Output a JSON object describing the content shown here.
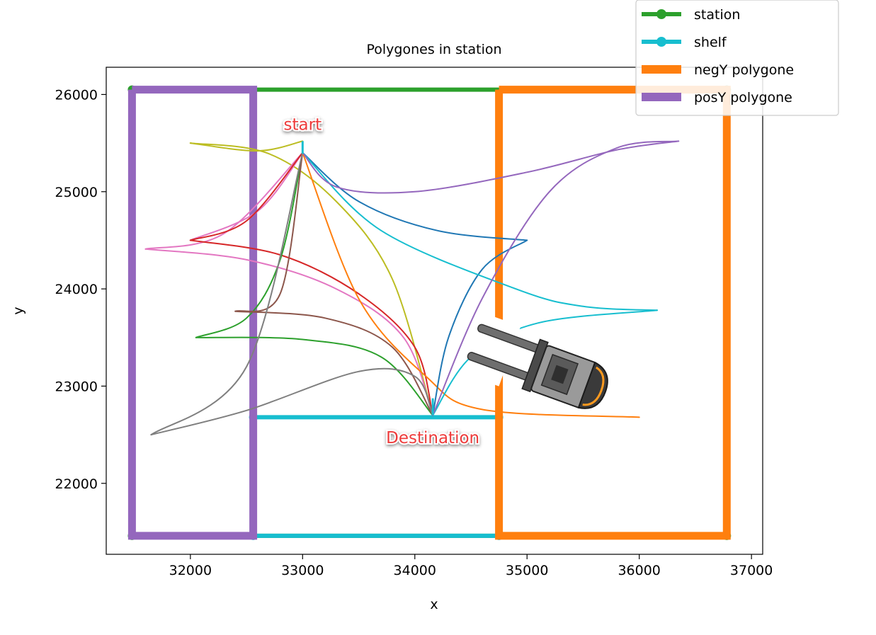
{
  "chart_data": {
    "type": "line",
    "title": "Polygones in station",
    "xlabel": "x",
    "ylabel": "y",
    "xlim": [
      31250,
      37100
    ],
    "ylim": [
      21270,
      26280
    ],
    "xticks": [
      32000,
      33000,
      34000,
      35000,
      36000,
      37000
    ],
    "yticks": [
      22000,
      23000,
      24000,
      25000,
      26000
    ],
    "grid": false,
    "legend_position": "top-right",
    "legend": [
      {
        "label": "station",
        "color": "#2ca02c",
        "style": "line-marker"
      },
      {
        "label": "shelf",
        "color": "#17becf",
        "style": "line-marker"
      },
      {
        "label": "negY polygone",
        "color": "#ff7f0e",
        "style": "thick"
      },
      {
        "label": "posY polygone",
        "color": "#9467bd",
        "style": "thick"
      }
    ],
    "polygons": [
      {
        "name": "station",
        "color": "#2ca02c",
        "width": 6,
        "markers": true,
        "points": [
          [
            31480,
            26050
          ],
          [
            36780,
            26050
          ],
          [
            36780,
            21460
          ],
          [
            31480,
            21460
          ],
          [
            31480,
            26050
          ]
        ]
      },
      {
        "name": "shelf",
        "color": "#17becf",
        "width": 6,
        "markers": true,
        "points": [
          [
            32560,
            22680
          ],
          [
            34750,
            22680
          ],
          [
            34750,
            21460
          ],
          [
            32560,
            21460
          ],
          [
            32560,
            22680
          ]
        ]
      },
      {
        "name": "negY polygone",
        "color": "#ff7f0e",
        "width": 11,
        "markers": false,
        "points": [
          [
            34750,
            26050
          ],
          [
            36780,
            26050
          ],
          [
            36780,
            21460
          ],
          [
            34750,
            21460
          ],
          [
            34750,
            26050
          ]
        ]
      },
      {
        "name": "posY polygone",
        "color": "#9467bd",
        "width": 11,
        "markers": false,
        "points": [
          [
            31480,
            26050
          ],
          [
            32560,
            26050
          ],
          [
            32560,
            21460
          ],
          [
            31480,
            21460
          ],
          [
            31480,
            26050
          ]
        ]
      }
    ],
    "paths": [
      {
        "color": "#bcbd22",
        "points": [
          [
            32000,
            25500
          ],
          [
            32600,
            25420
          ],
          [
            33000,
            25520
          ]
        ]
      },
      {
        "color": "#bcbd22",
        "points": [
          [
            32000,
            25500
          ],
          [
            32700,
            25390
          ],
          [
            33300,
            24900
          ],
          [
            33800,
            24100
          ],
          [
            34160,
            22700
          ]
        ]
      },
      {
        "color": "#e377c2",
        "points": [
          [
            32000,
            24500
          ],
          [
            32600,
            24800
          ],
          [
            33000,
            25400
          ]
        ]
      },
      {
        "color": "#e377c2",
        "points": [
          [
            31600,
            24410
          ],
          [
            32300,
            24570
          ],
          [
            33000,
            25400
          ]
        ]
      },
      {
        "color": "#e377c2",
        "points": [
          [
            31600,
            24410
          ],
          [
            32500,
            24300
          ],
          [
            33300,
            24000
          ],
          [
            33900,
            23500
          ],
          [
            34160,
            22700
          ]
        ]
      },
      {
        "color": "#d62728",
        "points": [
          [
            32000,
            24500
          ],
          [
            32500,
            24700
          ],
          [
            33000,
            25400
          ]
        ]
      },
      {
        "color": "#d62728",
        "points": [
          [
            32000,
            24500
          ],
          [
            32800,
            24350
          ],
          [
            33500,
            23950
          ],
          [
            34000,
            23400
          ],
          [
            34160,
            22700
          ]
        ]
      },
      {
        "color": "#2ca02c",
        "points": [
          [
            32050,
            23500
          ],
          [
            32500,
            23700
          ],
          [
            32800,
            24300
          ],
          [
            33000,
            25400
          ]
        ]
      },
      {
        "color": "#2ca02c",
        "points": [
          [
            32050,
            23500
          ],
          [
            33000,
            23480
          ],
          [
            33700,
            23300
          ],
          [
            34160,
            22700
          ]
        ]
      },
      {
        "color": "#8c564b",
        "points": [
          [
            32400,
            23770
          ],
          [
            32800,
            23950
          ],
          [
            33000,
            25400
          ]
        ]
      },
      {
        "color": "#8c564b",
        "points": [
          [
            32400,
            23770
          ],
          [
            33200,
            23700
          ],
          [
            33800,
            23400
          ],
          [
            34160,
            22700
          ]
        ]
      },
      {
        "color": "#7f7f7f",
        "points": [
          [
            31650,
            22500
          ],
          [
            32500,
            23200
          ],
          [
            33000,
            25400
          ]
        ]
      },
      {
        "color": "#7f7f7f",
        "points": [
          [
            31650,
            22500
          ],
          [
            32500,
            22750
          ],
          [
            33500,
            23150
          ],
          [
            34000,
            23100
          ],
          [
            34160,
            22700
          ]
        ]
      },
      {
        "color": "#ff7f0e",
        "points": [
          [
            33000,
            25400
          ],
          [
            33500,
            23900
          ],
          [
            34100,
            23100
          ],
          [
            34600,
            22760
          ],
          [
            36000,
            22680
          ]
        ]
      },
      {
        "color": "#1f77b4",
        "points": [
          [
            33000,
            25400
          ],
          [
            33500,
            24900
          ],
          [
            34200,
            24600
          ],
          [
            35000,
            24500
          ]
        ]
      },
      {
        "color": "#1f77b4",
        "points": [
          [
            34160,
            22700
          ],
          [
            34300,
            23500
          ],
          [
            34600,
            24200
          ],
          [
            35000,
            24500
          ]
        ]
      },
      {
        "color": "#17becf",
        "points": [
          [
            33000,
            25400
          ],
          [
            33700,
            24600
          ],
          [
            34900,
            24000
          ],
          [
            35500,
            23820
          ],
          [
            36160,
            23780
          ]
        ]
      },
      {
        "color": "#17becf",
        "points": [
          [
            34160,
            22700
          ],
          [
            34500,
            23300
          ],
          [
            35100,
            23650
          ],
          [
            36160,
            23780
          ]
        ]
      },
      {
        "color": "#9467bd",
        "points": [
          [
            33000,
            25400
          ],
          [
            33300,
            25050
          ],
          [
            34000,
            25000
          ],
          [
            35000,
            25200
          ],
          [
            35800,
            25430
          ],
          [
            36350,
            25520
          ]
        ]
      },
      {
        "color": "#9467bd",
        "points": [
          [
            34160,
            22700
          ],
          [
            34600,
            23900
          ],
          [
            35200,
            25000
          ],
          [
            35800,
            25450
          ],
          [
            36350,
            25520
          ]
        ]
      }
    ],
    "annotations": [
      {
        "text": "start",
        "x": 33000,
        "y": 25700
      },
      {
        "text": "Destination",
        "x": 34160,
        "y": 22480
      }
    ],
    "markers": {
      "start": [
        33000,
        25520
      ],
      "destination": [
        34160,
        22700
      ]
    },
    "vehicle": {
      "name": "forklift",
      "x": 35200,
      "y": 23150,
      "angle_deg": 20
    }
  }
}
